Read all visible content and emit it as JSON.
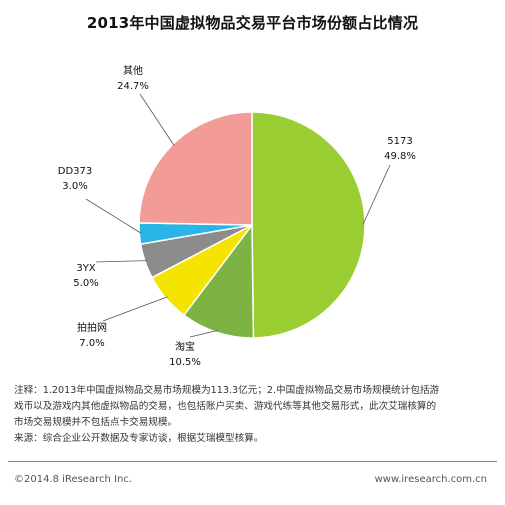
{
  "header": {
    "title": "2013年中国虚拟物品交易平台市场份额占比情况"
  },
  "notes": [
    "注释：1.2013年中国虚拟物品交易市场规模为113.3亿元；2.中国虚拟物品交易市场规模统计包括游",
    "戏币以及游戏内其他虚拟物品的交易，也包括账户买卖、游戏代练等其他交易形式，此次艾瑞核算的",
    "市场交易规模并不包括点卡交易规模。",
    "来源：综合企业公开数据及专家访谈，根据艾瑞模型核算。"
  ],
  "footer": {
    "copyright": "©2014.8 iResearch Inc.",
    "website": "www.iresearch.com.cn"
  },
  "chart_data": {
    "type": "pie",
    "title": "2013年中国虚拟物品交易平台市场份额占比情况",
    "slices": [
      {
        "label": "5173",
        "value": 49.8,
        "value_label": "49.8%",
        "color": "#9acd32"
      },
      {
        "label": "淘宝",
        "value": 10.5,
        "value_label": "10.5%",
        "color": "#7cb342"
      },
      {
        "label": "拍拍网",
        "value": 7.0,
        "value_label": "7.0%",
        "color": "#f5e400"
      },
      {
        "label": "3YX",
        "value": 5.0,
        "value_label": "5.0%",
        "color": "#8c8c8c"
      },
      {
        "label": "DD373",
        "value": 3.0,
        "value_label": "3.0%",
        "color": "#29b6e6"
      },
      {
        "label": "其他",
        "value": 24.7,
        "value_label": "24.7%",
        "color": "#f29b97"
      }
    ],
    "start_angle": "12 o'clock",
    "direction": "clockwise"
  }
}
